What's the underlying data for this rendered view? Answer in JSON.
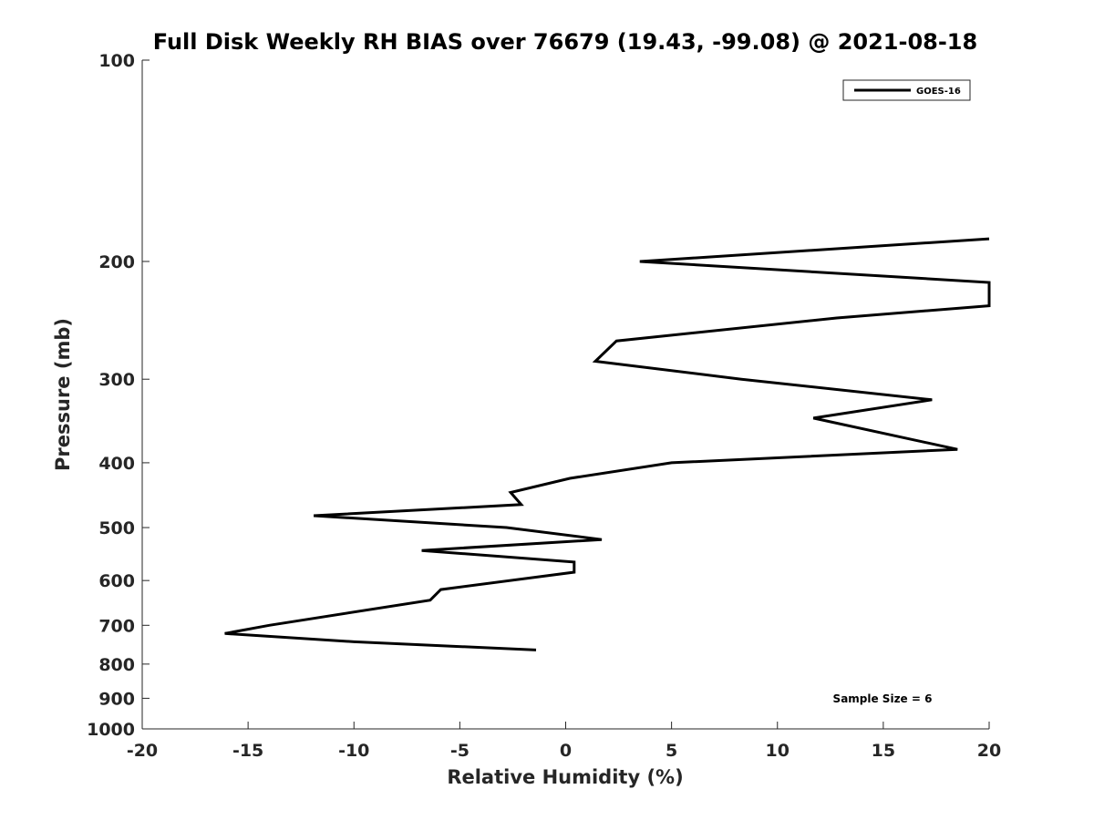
{
  "chart_data": {
    "type": "line",
    "title": "Full Disk Weekly RH BIAS over 76679 (19.43, -99.08) @ 2021-08-18",
    "xlabel": "Relative Humidity (%)",
    "ylabel": "Pressure (mb)",
    "xlim": [
      -20,
      20
    ],
    "ylim": [
      100,
      1000
    ],
    "yscale": "log",
    "y_reversed": true,
    "grid": false,
    "legend_position": "top-right",
    "x_ticks": [
      -20,
      -15,
      -10,
      -5,
      0,
      5,
      10,
      15,
      20
    ],
    "x_tick_labels": [
      "-20",
      "-15",
      "-10",
      "-5",
      "0",
      "5",
      "10",
      "15",
      "20"
    ],
    "y_ticks": [
      100,
      200,
      300,
      400,
      500,
      600,
      700,
      800,
      900,
      1000
    ],
    "y_tick_labels": [
      "100",
      "200",
      "300",
      "400",
      "500",
      "600",
      "700",
      "800",
      "900",
      "1000"
    ],
    "series": [
      {
        "name": "GOES-16",
        "color": "#000000",
        "points": [
          {
            "x": -1.4,
            "y": 762
          },
          {
            "x": -10.0,
            "y": 741
          },
          {
            "x": -16.1,
            "y": 720
          },
          {
            "x": -14.0,
            "y": 700
          },
          {
            "x": -6.4,
            "y": 642
          },
          {
            "x": -5.9,
            "y": 619
          },
          {
            "x": 0.4,
            "y": 583
          },
          {
            "x": 0.4,
            "y": 563
          },
          {
            "x": -6.8,
            "y": 541
          },
          {
            "x": 1.7,
            "y": 521
          },
          {
            "x": -2.8,
            "y": 500
          },
          {
            "x": -11.9,
            "y": 480
          },
          {
            "x": -2.1,
            "y": 462
          },
          {
            "x": -2.6,
            "y": 443
          },
          {
            "x": 0.2,
            "y": 422
          },
          {
            "x": 5.0,
            "y": 400
          },
          {
            "x": 18.5,
            "y": 382
          },
          {
            "x": 11.7,
            "y": 343
          },
          {
            "x": 17.3,
            "y": 322
          },
          {
            "x": 8.3,
            "y": 300
          },
          {
            "x": 1.4,
            "y": 282
          },
          {
            "x": 2.4,
            "y": 263
          },
          {
            "x": 12.8,
            "y": 243
          },
          {
            "x": 20.0,
            "y": 233
          },
          {
            "x": 20.0,
            "y": 215
          },
          {
            "x": 3.5,
            "y": 200
          },
          {
            "x": 20.0,
            "y": 185
          }
        ]
      }
    ],
    "annotation": "Sample Size = 6"
  }
}
